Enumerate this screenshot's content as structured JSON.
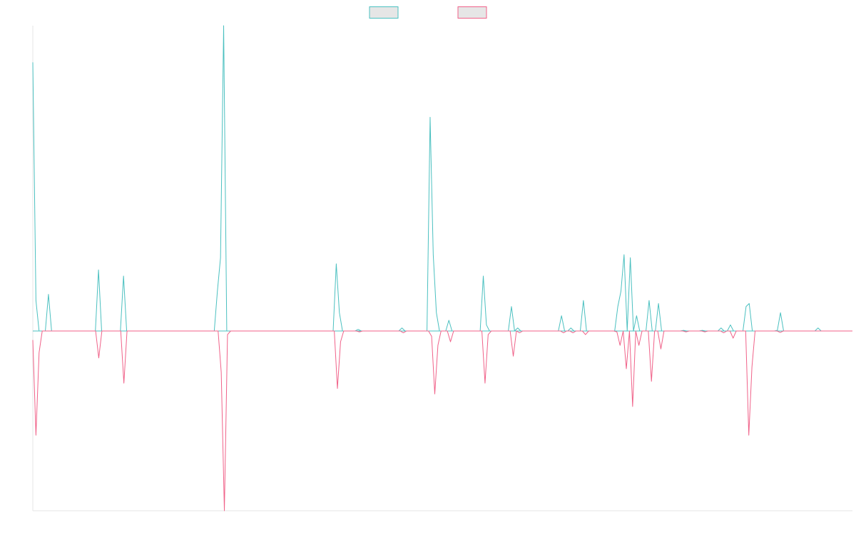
{
  "chart_data": {
    "type": "line",
    "title": "",
    "xlabel": "",
    "ylabel": "",
    "ylim": [
      -1,
      1
    ],
    "grid": false,
    "legend": {
      "placement": "top-center",
      "entries": [
        "",
        ""
      ]
    },
    "series": [
      {
        "color": "#4bc0c0",
        "fill": "#e6e6e6",
        "direction": "up",
        "values": [
          0.88,
          0.1,
          0,
          0,
          0,
          0.12,
          0,
          0,
          0,
          0,
          0,
          0,
          0,
          0,
          0,
          0,
          0,
          0,
          0,
          0,
          0,
          0.2,
          0,
          0,
          0,
          0,
          0,
          0,
          0,
          0.18,
          0,
          0,
          0,
          0,
          0,
          0,
          0,
          0,
          0,
          0,
          0,
          0,
          0,
          0,
          0,
          0,
          0,
          0,
          0,
          0,
          0,
          0,
          0,
          0,
          0,
          0,
          0,
          0,
          0,
          0.13,
          0.24,
          1.0,
          0,
          0,
          0,
          0,
          0,
          0,
          0,
          0,
          0,
          0,
          0,
          0,
          0,
          0,
          0,
          0,
          0,
          0,
          0,
          0,
          0,
          0,
          0,
          0,
          0,
          0,
          0,
          0,
          0,
          0,
          0,
          0,
          0,
          0,
          0,
          0.22,
          0.06,
          0,
          0,
          0,
          0,
          0,
          0.005,
          0,
          0,
          0,
          0,
          0,
          0,
          0,
          0,
          0,
          0,
          0,
          0,
          0,
          0.01,
          0,
          0,
          0,
          0,
          0,
          0,
          0,
          0,
          0.7,
          0.25,
          0.06,
          0,
          0,
          0,
          0.035,
          0,
          0,
          0,
          0,
          0,
          0,
          0,
          0,
          0,
          0,
          0.18,
          0.02,
          0,
          0,
          0,
          0,
          0,
          0,
          0,
          0.08,
          0,
          0.01,
          0,
          0,
          0,
          0,
          0,
          0,
          0,
          0,
          0,
          0,
          0,
          0,
          0,
          0.05,
          0,
          0,
          0.01,
          0,
          0,
          0,
          0.1,
          0,
          0,
          0,
          0,
          0,
          0,
          0,
          0,
          0,
          0,
          0.08,
          0.13,
          0.25,
          0,
          0.24,
          0,
          0.05,
          0,
          0,
          0,
          0.1,
          0,
          0,
          0.09,
          0,
          0,
          0,
          0,
          0,
          0,
          0,
          0.002,
          0,
          0,
          0,
          0,
          0,
          0.002,
          0,
          0,
          0,
          0,
          0,
          0.01,
          0,
          0,
          0.02,
          0,
          0,
          0,
          0,
          0.08,
          0.09,
          0,
          0,
          0,
          0,
          0,
          0,
          0,
          0,
          0.002,
          0.06,
          0,
          0,
          0,
          0,
          0,
          0,
          0,
          0,
          0,
          0,
          0,
          0.01,
          0,
          0,
          0,
          0,
          0,
          0,
          0,
          0,
          0,
          0,
          0
        ]
      },
      {
        "color": "#f06289",
        "fill": "#e6e6e6",
        "direction": "down",
        "values": [
          0.05,
          0.58,
          0.12,
          0,
          0,
          0,
          0,
          0,
          0,
          0,
          0,
          0,
          0,
          0,
          0,
          0,
          0,
          0,
          0,
          0,
          0,
          0.15,
          0,
          0,
          0,
          0,
          0,
          0,
          0,
          0.29,
          0,
          0,
          0,
          0,
          0,
          0,
          0,
          0,
          0,
          0,
          0,
          0,
          0,
          0,
          0,
          0,
          0,
          0,
          0,
          0,
          0,
          0,
          0,
          0,
          0,
          0,
          0,
          0,
          0,
          0,
          0.23,
          1.0,
          0.02,
          0,
          0,
          0,
          0,
          0,
          0,
          0,
          0,
          0,
          0,
          0,
          0,
          0,
          0,
          0,
          0,
          0,
          0,
          0,
          0,
          0,
          0,
          0,
          0,
          0,
          0,
          0,
          0,
          0,
          0,
          0,
          0,
          0,
          0,
          0.32,
          0.06,
          0,
          0,
          0,
          0,
          0,
          0.005,
          0,
          0,
          0,
          0,
          0,
          0,
          0,
          0,
          0,
          0,
          0,
          0,
          0,
          0.01,
          0,
          0,
          0,
          0,
          0,
          0,
          0,
          0,
          0.03,
          0.35,
          0.08,
          0,
          0,
          0,
          0.06,
          0,
          0,
          0,
          0,
          0,
          0,
          0,
          0,
          0,
          0,
          0.29,
          0.02,
          0,
          0,
          0,
          0,
          0,
          0,
          0,
          0.14,
          0,
          0.01,
          0,
          0,
          0,
          0,
          0,
          0,
          0,
          0,
          0,
          0,
          0,
          0,
          0,
          0.01,
          0,
          0,
          0.01,
          0,
          0,
          0,
          0.02,
          0,
          0,
          0,
          0,
          0,
          0,
          0,
          0,
          0,
          0.005,
          0.08,
          0,
          0.21,
          0,
          0.42,
          0,
          0.08,
          0,
          0,
          0,
          0.28,
          0,
          0,
          0.1,
          0,
          0,
          0,
          0,
          0,
          0,
          0,
          0.005,
          0,
          0,
          0,
          0,
          0,
          0.005,
          0,
          0,
          0,
          0,
          0,
          0.01,
          0,
          0,
          0.04,
          0,
          0,
          0,
          0,
          0.58,
          0.2,
          0,
          0,
          0,
          0,
          0,
          0,
          0,
          0,
          0.008,
          0,
          0,
          0,
          0,
          0,
          0,
          0,
          0,
          0,
          0,
          0,
          0,
          0,
          0,
          0,
          0,
          0,
          0,
          0,
          0,
          0,
          0,
          0
        ]
      }
    ]
  }
}
